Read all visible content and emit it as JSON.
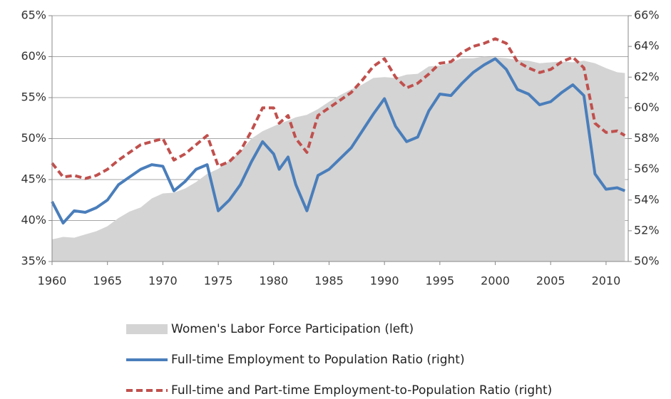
{
  "chart_data": {
    "type": "line",
    "x": [
      1960,
      1961,
      1962,
      1963,
      1964,
      1965,
      1966,
      1967,
      1968,
      1969,
      1970,
      1971,
      1972,
      1973,
      1974,
      1975,
      1976,
      1977,
      1978,
      1979,
      1980,
      1980.5,
      1981.3,
      1982,
      1983,
      1984,
      1985,
      1986,
      1987,
      1988,
      1989,
      1990,
      1991,
      1992,
      1993,
      1994,
      1995,
      1996,
      1997,
      1998,
      1999,
      2000,
      2001,
      2002,
      2003,
      2004,
      2005,
      2006,
      2007,
      2008,
      2009,
      2010,
      2011,
      2011.7
    ],
    "series": [
      {
        "name": "Women's Labor Force Participation (left)",
        "color": "#d4d4d4",
        "kind": "area",
        "axis": "y",
        "values": [
          37.7,
          38.0,
          37.9,
          38.3,
          38.7,
          39.3,
          40.3,
          41.1,
          41.6,
          42.7,
          43.3,
          43.4,
          43.9,
          44.7,
          45.7,
          46.3,
          47.3,
          48.4,
          50.0,
          50.9,
          51.5,
          51.8,
          52.2,
          52.6,
          52.9,
          53.6,
          54.5,
          55.3,
          56.0,
          56.6,
          57.4,
          57.5,
          57.4,
          57.8,
          57.9,
          58.8,
          58.9,
          59.3,
          59.8,
          59.8,
          60.0,
          59.9,
          59.8,
          59.6,
          59.5,
          59.2,
          59.3,
          59.4,
          59.3,
          59.5,
          59.2,
          58.6,
          58.1,
          58.0
        ]
      },
      {
        "name": "Full-time Employment to Population Ratio (right)",
        "color": "#4a7ebb",
        "kind": "line",
        "style": "solid",
        "axis": "y2",
        "values": [
          53.9,
          52.5,
          53.3,
          53.2,
          53.5,
          54.0,
          55.0,
          55.5,
          56.0,
          56.3,
          56.2,
          54.6,
          55.2,
          56.0,
          56.3,
          53.3,
          54.0,
          55.0,
          56.5,
          57.8,
          57.0,
          56.0,
          56.8,
          55.0,
          53.3,
          55.6,
          56.0,
          56.7,
          57.4,
          58.5,
          59.6,
          60.6,
          58.8,
          57.8,
          58.1,
          59.8,
          60.9,
          60.8,
          61.6,
          62.3,
          62.8,
          63.2,
          62.5,
          61.2,
          60.9,
          60.2,
          60.4,
          61.0,
          61.5,
          60.8,
          55.7,
          54.7,
          54.8,
          54.6
        ]
      },
      {
        "name": "Full-time and Part-time Employment-to-Population Ratio (right)",
        "color": "#c0504d",
        "kind": "line",
        "style": "dashed",
        "axis": "y2",
        "values": [
          56.4,
          55.5,
          55.6,
          55.4,
          55.6,
          56.0,
          56.6,
          57.1,
          57.6,
          57.8,
          58.0,
          56.6,
          57.0,
          57.6,
          58.2,
          56.2,
          56.5,
          57.2,
          58.5,
          60.0,
          60.0,
          59.0,
          59.5,
          58.0,
          57.1,
          59.5,
          60.0,
          60.5,
          61.0,
          61.8,
          62.7,
          63.2,
          62.0,
          61.3,
          61.6,
          62.2,
          62.9,
          63.0,
          63.6,
          64.0,
          64.2,
          64.5,
          64.2,
          63.0,
          62.6,
          62.3,
          62.5,
          63.0,
          63.3,
          62.6,
          59.0,
          58.4,
          58.5,
          58.2
        ]
      }
    ],
    "xlim": [
      1960,
      2012
    ],
    "xticks": [
      1960,
      1965,
      1970,
      1975,
      1980,
      1985,
      1990,
      1995,
      2000,
      2005,
      2010
    ],
    "ylim": [
      35,
      65
    ],
    "yticks": [
      {
        "value": 35,
        "label": "35%"
      },
      {
        "value": 40,
        "label": "40%"
      },
      {
        "value": 45,
        "label": "45%"
      },
      {
        "value": 50,
        "label": "50%"
      },
      {
        "value": 55,
        "label": "55%"
      },
      {
        "value": 60,
        "label": "60%"
      },
      {
        "value": 65,
        "label": "65%"
      }
    ],
    "y2lim": [
      50,
      66
    ],
    "y2ticks": [
      {
        "value": 50,
        "label": "50%"
      },
      {
        "value": 52,
        "label": "52%"
      },
      {
        "value": 54,
        "label": "54%"
      },
      {
        "value": 56,
        "label": "56%"
      },
      {
        "value": 58,
        "label": "58%"
      },
      {
        "value": 60,
        "label": "60%"
      },
      {
        "value": 62,
        "label": "62%"
      },
      {
        "value": 64,
        "label": "64%"
      },
      {
        "value": 66,
        "label": "66%"
      }
    ],
    "grid": true,
    "legend": "bottom"
  }
}
